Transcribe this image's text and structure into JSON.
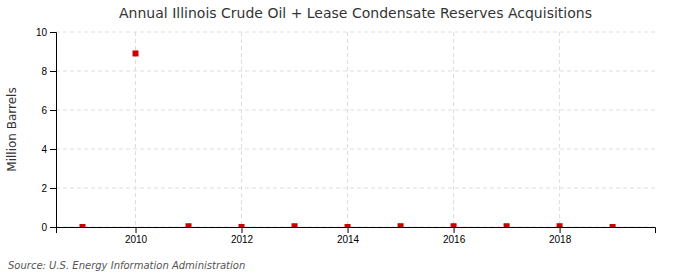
{
  "chart_data": {
    "type": "scatter",
    "title": "Annual Illinois Crude Oil + Lease Condensate Reserves Acquisitions",
    "y_label": "Million Barrels",
    "source": "Source: U.S. Energy Information Administration",
    "x": [
      2009,
      2010,
      2011,
      2012,
      2013,
      2014,
      2015,
      2016,
      2017,
      2018,
      2019
    ],
    "values": [
      0.0,
      8.9,
      0.04,
      0.0,
      0.04,
      0.0,
      0.04,
      0.04,
      0.04,
      0.04,
      0.0
    ],
    "color": "#cc0000",
    "marker": "square",
    "xlim": [
      2008.5,
      2019.8
    ],
    "xticks": [
      2010,
      2012,
      2014,
      2016,
      2018
    ],
    "ylim": [
      0,
      10
    ],
    "yticks": [
      0,
      2,
      4,
      6,
      8,
      10
    ],
    "grid": true
  }
}
